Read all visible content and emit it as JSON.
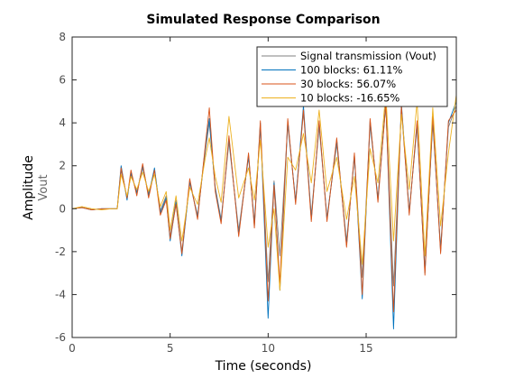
{
  "chart_data": {
    "type": "line",
    "title": "Simulated Response Comparison",
    "xlabel": "Time (seconds)",
    "ylabel": "Amplitude",
    "ylabel_sub": "Vout",
    "xlim": [
      0,
      19.6
    ],
    "ylim": [
      -6,
      8
    ],
    "xticks": [
      0,
      5,
      10,
      15
    ],
    "yticks": [
      -6,
      -4,
      -2,
      0,
      2,
      4,
      6,
      8
    ],
    "grid": false,
    "legend_position": "top-right",
    "series": [
      {
        "name": "Signal transmission (Vout)",
        "color": "#808080",
        "x": [
          0,
          0.5,
          1.0,
          1.5,
          2.0,
          2.3,
          2.5,
          2.8,
          3.0,
          3.3,
          3.6,
          3.9,
          4.2,
          4.5,
          4.8,
          5.0,
          5.3,
          5.6,
          6.0,
          6.4,
          6.8,
          7.0,
          7.3,
          7.6,
          8.0,
          8.5,
          9.0,
          9.3,
          9.6,
          10.0,
          10.3,
          10.6,
          11.0,
          11.4,
          11.8,
          12.2,
          12.6,
          13.0,
          13.5,
          14.0,
          14.4,
          14.8,
          15.2,
          15.6,
          16.0,
          16.4,
          16.8,
          17.2,
          17.6,
          18.0,
          18.4,
          18.8,
          19.2,
          19.6
        ],
        "values": [
          0,
          0.05,
          -0.05,
          0,
          0,
          0,
          1.8,
          0.5,
          1.6,
          0.8,
          1.9,
          0.7,
          1.8,
          -0.1,
          0.6,
          -1.3,
          0.4,
          -2.0,
          1.2,
          -0.3,
          2.7,
          4.0,
          1.0,
          -0.5,
          3.1,
          -1.0,
          2.4,
          -0.6,
          3.8,
          -3.4,
          1.3,
          -2.2,
          3.9,
          0.4,
          4.5,
          -0.3,
          3.8,
          -0.4,
          3.0,
          -1.5,
          2.4,
          -3.2,
          3.9,
          0.5,
          4.8,
          -3.6,
          4.6,
          -0.1,
          3.8,
          -2.8,
          4.0,
          -1.8,
          3.8,
          4.8
        ]
      },
      {
        "name": "100 blocks: 61.11%",
        "color": "#0072bd",
        "x": [
          0,
          0.5,
          1.0,
          1.5,
          2.0,
          2.3,
          2.5,
          2.8,
          3.0,
          3.3,
          3.6,
          3.9,
          4.2,
          4.5,
          4.8,
          5.0,
          5.3,
          5.6,
          6.0,
          6.4,
          6.8,
          7.0,
          7.3,
          7.6,
          8.0,
          8.5,
          9.0,
          9.3,
          9.6,
          10.0,
          10.3,
          10.6,
          11.0,
          11.4,
          11.8,
          12.2,
          12.6,
          13.0,
          13.5,
          14.0,
          14.4,
          14.8,
          15.2,
          15.6,
          16.0,
          16.4,
          16.8,
          17.2,
          17.6,
          18.0,
          18.4,
          18.8,
          19.2,
          19.6
        ],
        "values": [
          0,
          0.05,
          -0.05,
          0,
          0,
          0,
          2.0,
          0.4,
          1.7,
          0.7,
          2.0,
          0.6,
          1.9,
          -0.2,
          0.5,
          -1.5,
          0.3,
          -2.2,
          1.3,
          -0.4,
          2.9,
          4.2,
          0.9,
          -0.6,
          3.3,
          -1.2,
          2.5,
          -0.8,
          4.0,
          -5.1,
          1.2,
          -3.8,
          4.1,
          0.3,
          4.8,
          -0.5,
          4.0,
          -0.5,
          3.2,
          -1.7,
          2.5,
          -4.2,
          4.1,
          0.4,
          5.0,
          -5.6,
          4.9,
          -0.2,
          4.0,
          -3.0,
          4.2,
          -2.0,
          4.0,
          5.0
        ]
      },
      {
        "name": "30 blocks: 56.07%",
        "color": "#d95319",
        "x": [
          0,
          0.5,
          1.0,
          1.5,
          2.0,
          2.3,
          2.5,
          2.8,
          3.0,
          3.3,
          3.6,
          3.9,
          4.2,
          4.5,
          4.8,
          5.0,
          5.3,
          5.6,
          6.0,
          6.4,
          6.8,
          7.0,
          7.3,
          7.6,
          8.0,
          8.5,
          9.0,
          9.3,
          9.6,
          10.0,
          10.3,
          10.6,
          11.0,
          11.4,
          11.8,
          12.2,
          12.6,
          13.0,
          13.5,
          14.0,
          14.4,
          14.8,
          15.2,
          15.6,
          16.0,
          16.4,
          16.8,
          17.2,
          17.6,
          18.0,
          18.4,
          18.8,
          19.2,
          19.6
        ],
        "values": [
          0,
          0.05,
          -0.05,
          0,
          0,
          0,
          1.9,
          0.5,
          1.8,
          0.6,
          2.1,
          0.5,
          1.8,
          -0.3,
          0.4,
          -1.4,
          0.2,
          -2.1,
          1.4,
          -0.5,
          3.0,
          4.7,
          0.8,
          -0.7,
          3.4,
          -1.3,
          2.6,
          -0.9,
          4.1,
          -4.3,
          1.1,
          -3.5,
          4.2,
          0.2,
          4.6,
          -0.6,
          4.1,
          -0.6,
          3.3,
          -1.8,
          2.6,
          -4.0,
          4.2,
          0.3,
          4.9,
          -4.8,
          4.8,
          -0.3,
          4.1,
          -3.1,
          4.3,
          -2.1,
          4.1,
          4.6
        ]
      },
      {
        "name": "10 blocks: -16.65%",
        "color": "#edb120",
        "x": [
          0,
          0.5,
          1.0,
          1.5,
          2.0,
          2.3,
          2.5,
          2.8,
          3.0,
          3.3,
          3.6,
          3.9,
          4.2,
          4.5,
          4.8,
          5.0,
          5.3,
          5.6,
          6.0,
          6.4,
          6.8,
          7.0,
          7.3,
          7.6,
          8.0,
          8.5,
          9.0,
          9.3,
          9.6,
          10.0,
          10.3,
          10.6,
          11.0,
          11.4,
          11.8,
          12.2,
          12.6,
          13.0,
          13.5,
          14.0,
          14.4,
          14.8,
          15.2,
          15.6,
          16.0,
          16.4,
          16.8,
          17.2,
          17.6,
          18.0,
          18.4,
          18.8,
          19.2,
          19.6
        ],
        "values": [
          0,
          0.1,
          0,
          -0.05,
          0,
          0,
          1.6,
          0.6,
          1.5,
          0.9,
          1.7,
          0.8,
          1.6,
          0.1,
          0.8,
          -1.0,
          0.6,
          -1.5,
          1.0,
          0.2,
          2.4,
          3.3,
          1.5,
          0.3,
          4.3,
          0.5,
          1.9,
          0.4,
          3.2,
          -1.8,
          0.0,
          -3.8,
          2.4,
          1.8,
          3.5,
          1.2,
          4.6,
          0.8,
          2.4,
          -0.5,
          1.5,
          -2.6,
          2.8,
          1.2,
          5.4,
          -1.5,
          4.4,
          0.9,
          5.0,
          -2.2,
          4.7,
          -0.8,
          2.6,
          5.3
        ]
      }
    ]
  }
}
